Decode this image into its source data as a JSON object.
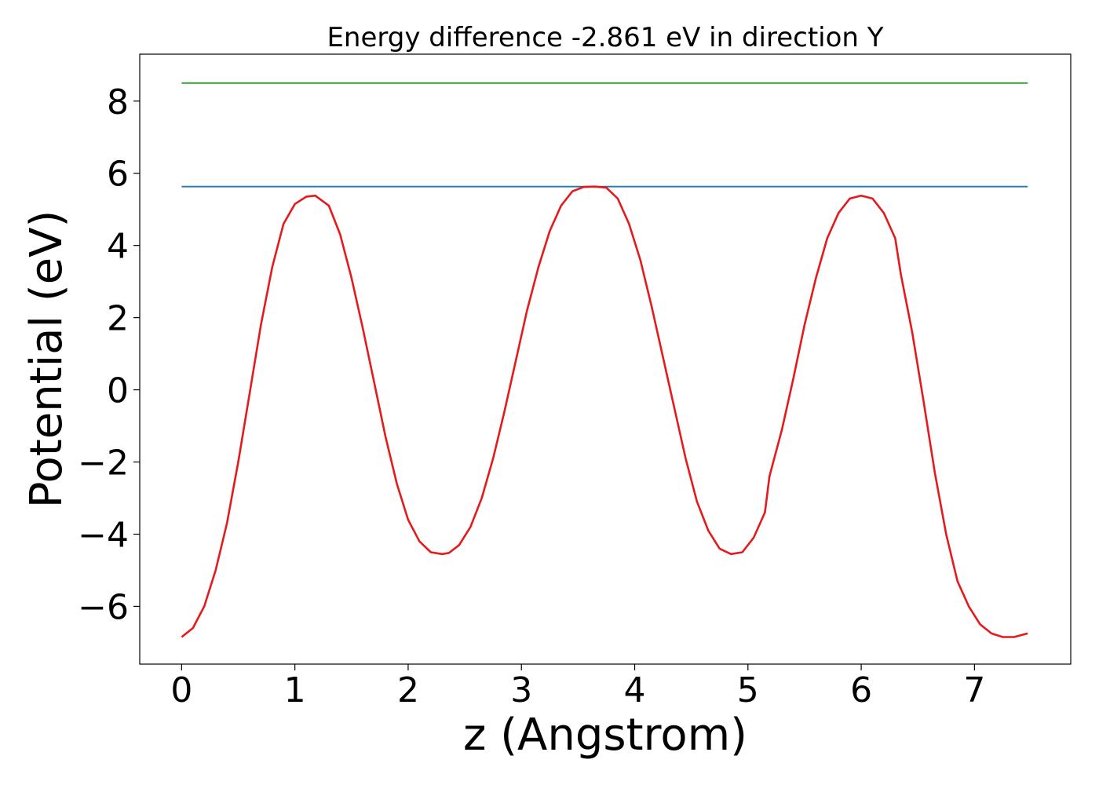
{
  "chart_data": {
    "type": "line",
    "title": "Energy difference -2.861 eV in direction Y",
    "xlabel": "z (Angstrom)",
    "ylabel": "Potential (eV)",
    "xlim": [
      -0.37,
      7.85
    ],
    "ylim": [
      -7.6,
      9.3
    ],
    "xticks": [
      0,
      1,
      2,
      3,
      4,
      5,
      6,
      7
    ],
    "xtick_labels": [
      "0",
      "1",
      "2",
      "3",
      "4",
      "5",
      "6",
      "7"
    ],
    "yticks": [
      -6,
      -4,
      -2,
      0,
      2,
      4,
      6,
      8
    ],
    "ytick_labels": [
      "−6",
      "−4",
      "−2",
      "0",
      "2",
      "4",
      "6",
      "8"
    ],
    "grid": false,
    "legend": "none",
    "series": [
      {
        "color": "#2ca02c",
        "x": [
          0,
          7.47
        ],
        "y": [
          8.5,
          8.5
        ]
      },
      {
        "color": "#1f77b4",
        "x": [
          0,
          7.47
        ],
        "y": [
          5.63,
          5.63
        ]
      },
      {
        "color": "#e41a1c",
        "x": [
          0,
          0.1,
          0.2,
          0.3,
          0.4,
          0.5,
          0.6,
          0.7,
          0.8,
          0.9,
          1.0,
          1.1,
          1.18,
          1.3,
          1.4,
          1.5,
          1.6,
          1.7,
          1.8,
          1.9,
          2.0,
          2.1,
          2.2,
          2.3,
          2.36,
          2.45,
          2.55,
          2.65,
          2.75,
          2.85,
          2.95,
          3.05,
          3.15,
          3.25,
          3.35,
          3.45,
          3.55,
          3.65,
          3.75,
          3.85,
          3.95,
          4.05,
          4.15,
          4.25,
          4.35,
          4.45,
          4.55,
          4.65,
          4.75,
          4.85,
          4.95,
          5.05,
          5.15,
          5.19,
          5.3,
          5.4,
          5.5,
          5.6,
          5.7,
          5.8,
          5.9,
          6.0,
          6.1,
          6.2,
          6.3,
          6.35,
          6.45,
          6.55,
          6.65,
          6.75,
          6.85,
          6.95,
          7.05,
          7.15,
          7.25,
          7.35,
          7.47
        ],
        "y": [
          -6.85,
          -6.6,
          -6.0,
          -5.0,
          -3.7,
          -2.0,
          -0.1,
          1.8,
          3.4,
          4.6,
          5.15,
          5.35,
          5.38,
          5.1,
          4.3,
          3.1,
          1.7,
          0.2,
          -1.3,
          -2.6,
          -3.6,
          -4.2,
          -4.5,
          -4.55,
          -4.52,
          -4.3,
          -3.8,
          -3.0,
          -1.9,
          -0.6,
          0.8,
          2.2,
          3.4,
          4.4,
          5.1,
          5.5,
          5.62,
          5.63,
          5.6,
          5.3,
          4.6,
          3.6,
          2.3,
          0.9,
          -0.5,
          -1.9,
          -3.1,
          -3.9,
          -4.4,
          -4.55,
          -4.5,
          -4.1,
          -3.4,
          -2.4,
          -1.1,
          0.3,
          1.8,
          3.1,
          4.2,
          4.9,
          5.3,
          5.38,
          5.3,
          4.9,
          4.2,
          3.2,
          1.6,
          -0.3,
          -2.3,
          -4.0,
          -5.3,
          -6.0,
          -6.5,
          -6.75,
          -6.85,
          -6.85,
          -6.75
        ]
      }
    ]
  }
}
